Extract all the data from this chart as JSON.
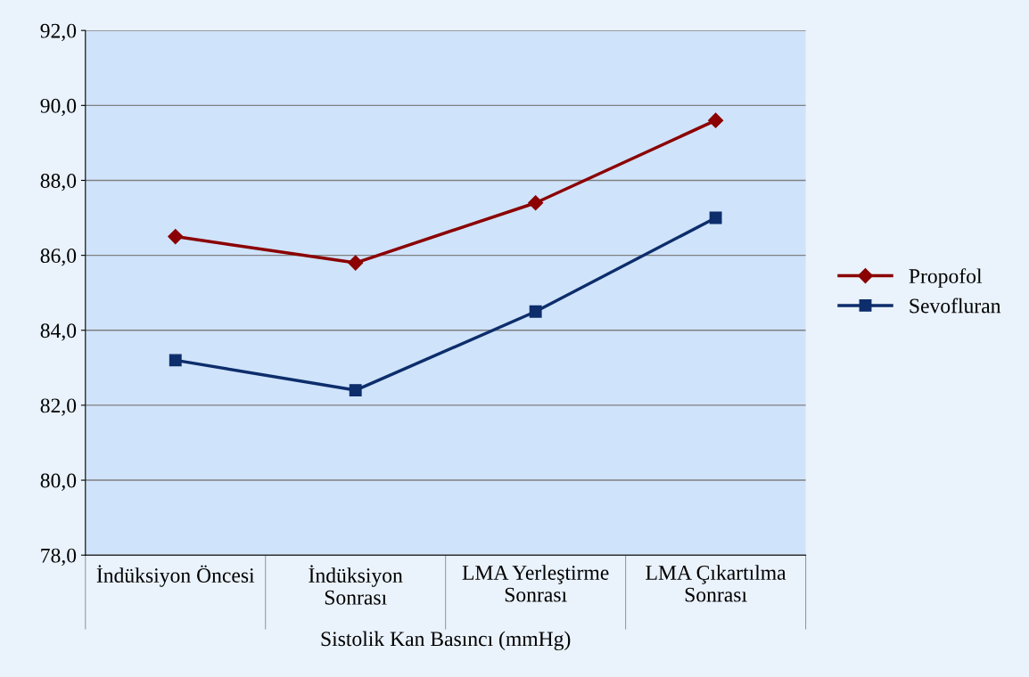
{
  "chart_data": {
    "type": "line",
    "xlabel": "Sistolik Kan Basıncı (mmHg)",
    "categories": [
      "İndüksiyon Öncesi",
      "İndüksiyon\nSonrası",
      "LMA Yerleştirme\nSonrası",
      "LMA Çıkartılma\nSonrası"
    ],
    "series": [
      {
        "name": "Propofol",
        "color": "#8b0000",
        "marker": "diamond",
        "values": [
          86.5,
          85.8,
          87.4,
          89.6
        ]
      },
      {
        "name": "Sevofluran",
        "color": "#0d2d6b",
        "marker": "square",
        "values": [
          83.2,
          82.4,
          84.5,
          87.0
        ]
      }
    ],
    "ylim": [
      78,
      92
    ],
    "yticks": [
      {
        "value": 78,
        "label": "78,0"
      },
      {
        "value": 80,
        "label": "80,0"
      },
      {
        "value": 82,
        "label": "82,0"
      },
      {
        "value": 84,
        "label": "84,0"
      },
      {
        "value": 86,
        "label": "86,0"
      },
      {
        "value": 88,
        "label": "88,0"
      },
      {
        "value": 90,
        "label": "90,0"
      },
      {
        "value": 92,
        "label": "92,0"
      }
    ],
    "grid": "y",
    "legend": "right",
    "line_style": "solid"
  }
}
